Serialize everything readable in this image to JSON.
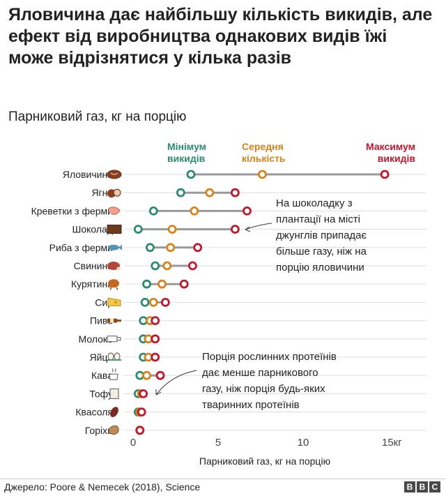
{
  "title": "Яловичина дає найбільшу кількість викидів, але ефект від виробництва однакових видів їжі може відрізнятися у кілька разів",
  "subtitle": "Парниковий газ, кг на порцію",
  "source": "Джерело: Poore & Nemecek (2018), Science",
  "logo": [
    "B",
    "B",
    "C"
  ],
  "colors": {
    "min": "#2a8c6e",
    "avg": "#d88218",
    "max": "#c4162a",
    "line": "#999999",
    "grid": "#dddddd"
  },
  "legend": {
    "min": [
      "Мінімум",
      "викидів"
    ],
    "avg": [
      "Середня",
      "кількість"
    ],
    "max": [
      "Максимум",
      "викидів"
    ]
  },
  "annotations": {
    "chocolate": [
      "На шоколадку з",
      "плантації на місті",
      "джунглів припадає",
      "більше газу, ніж на",
      "порцію яловичини"
    ],
    "plant": [
      "Порція рослинних протеїнів",
      "дає менше парникового",
      "газу, ніж порція будь-яких",
      "тваринних протеїнів"
    ]
  },
  "chart_data": {
    "type": "dot-range",
    "xlabel": "Парниковий газ, кг на порцію",
    "xlim": [
      0,
      16
    ],
    "xticks": [
      0,
      5,
      10,
      15
    ],
    "xtick_labels": [
      "0",
      "5",
      "10",
      "15кг"
    ],
    "series": [
      {
        "name": "Мінімум викидів",
        "key": "min"
      },
      {
        "name": "Середня кількість",
        "key": "avg"
      },
      {
        "name": "Максимум викидів",
        "key": "max"
      }
    ],
    "items": [
      {
        "label": "Яловичина",
        "icon": "beef-icon",
        "min": 3.4,
        "avg": 7.6,
        "max": 14.8
      },
      {
        "label": "Ягня",
        "icon": "lamb-icon",
        "min": 2.8,
        "avg": 4.5,
        "max": 6.0
      },
      {
        "label": "Креветки з ферми",
        "icon": "shrimp-icon",
        "min": 1.2,
        "avg": 3.6,
        "max": 6.7
      },
      {
        "label": "Шоколад",
        "icon": "chocolate-icon",
        "min": 0.3,
        "avg": 2.3,
        "max": 6.0
      },
      {
        "label": "Риба з ферми",
        "icon": "fish-icon",
        "min": 1.0,
        "avg": 2.2,
        "max": 3.8
      },
      {
        "label": "Свинина",
        "icon": "pork-icon",
        "min": 1.3,
        "avg": 2.0,
        "max": 3.5
      },
      {
        "label": "Курятина",
        "icon": "chicken-icon",
        "min": 0.8,
        "avg": 1.7,
        "max": 3.0
      },
      {
        "label": "Сир",
        "icon": "cheese-icon",
        "min": 0.7,
        "avg": 1.2,
        "max": 1.9
      },
      {
        "label": "Пиво",
        "icon": "beer-icon",
        "min": 0.6,
        "avg": 1.0,
        "max": 1.3
      },
      {
        "label": "Молоко",
        "icon": "milk-icon",
        "min": 0.6,
        "avg": 0.9,
        "max": 1.3
      },
      {
        "label": "Яйця",
        "icon": "eggs-icon",
        "min": 0.6,
        "avg": 0.9,
        "max": 1.3
      },
      {
        "label": "Кава",
        "icon": "coffee-icon",
        "min": 0.4,
        "avg": 0.8,
        "max": 1.6
      },
      {
        "label": "Тофу",
        "icon": "tofu-icon",
        "min": 0.3,
        "avg": 0.5,
        "max": 0.6
      },
      {
        "label": "Квасоля",
        "icon": "beans-icon",
        "min": 0.3,
        "avg": 0.4,
        "max": 0.5
      },
      {
        "label": "Горіхи",
        "icon": "nuts-icon",
        "min": 0.4,
        "avg": 0.4,
        "max": 0.4
      }
    ]
  }
}
